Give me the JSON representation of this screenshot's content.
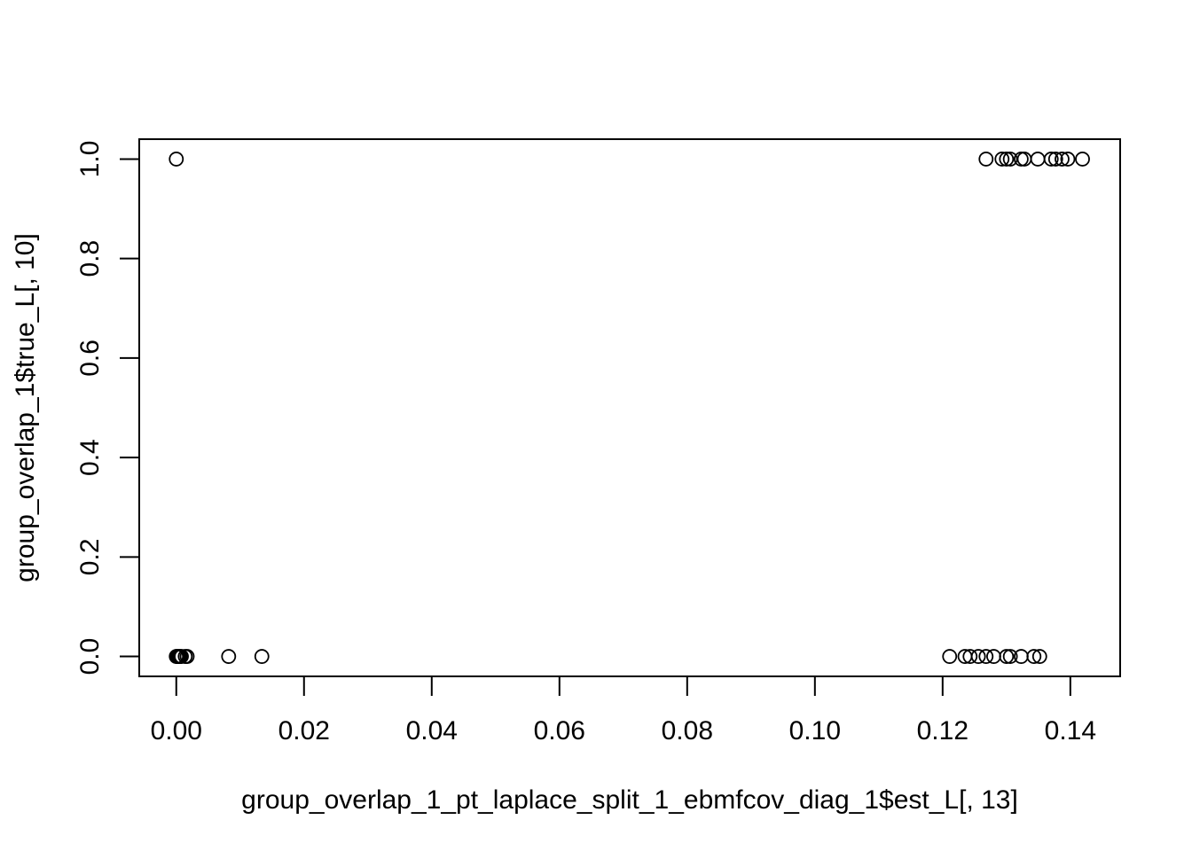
{
  "chart_data": {
    "type": "scatter",
    "title": "",
    "xlabel": "group_overlap_1_pt_laplace_split_1_ebmfcov_diag_1$est_L[, 13]",
    "ylabel": "group_overlap_1$true_L[, 10]",
    "xlim": [
      -0.0058,
      0.1478
    ],
    "ylim": [
      -0.04,
      1.04
    ],
    "x_ticks": [
      0.0,
      0.02,
      0.04,
      0.06,
      0.08,
      0.1,
      0.12,
      0.14
    ],
    "x_tick_labels": [
      "0.00",
      "0.02",
      "0.04",
      "0.06",
      "0.08",
      "0.10",
      "0.12",
      "0.14"
    ],
    "y_ticks": [
      0.0,
      0.2,
      0.4,
      0.6,
      0.8,
      1.0
    ],
    "y_tick_labels": [
      "0.0",
      "0.2",
      "0.4",
      "0.6",
      "0.8",
      "1.0"
    ],
    "grid": false,
    "marker": "open-circle",
    "colors": {
      "points": "#000000",
      "frame": "#000000",
      "background": "#ffffff"
    },
    "points": [
      {
        "x": 0.0,
        "y": 1
      },
      {
        "x": 0.1268,
        "y": 1
      },
      {
        "x": 0.1293,
        "y": 1
      },
      {
        "x": 0.13,
        "y": 1
      },
      {
        "x": 0.1306,
        "y": 1
      },
      {
        "x": 0.1323,
        "y": 1
      },
      {
        "x": 0.1328,
        "y": 1
      },
      {
        "x": 0.1349,
        "y": 1
      },
      {
        "x": 0.137,
        "y": 1
      },
      {
        "x": 0.1377,
        "y": 1
      },
      {
        "x": 0.1387,
        "y": 1
      },
      {
        "x": 0.1396,
        "y": 1
      },
      {
        "x": 0.1419,
        "y": 1
      },
      {
        "x": 0.0,
        "y": 0
      },
      {
        "x": 0.0001,
        "y": 0
      },
      {
        "x": 0.0002,
        "y": 0
      },
      {
        "x": 0.0003,
        "y": 0
      },
      {
        "x": 0.0004,
        "y": 0
      },
      {
        "x": 0.0006,
        "y": 0
      },
      {
        "x": 0.0008,
        "y": 0
      },
      {
        "x": 0.0014,
        "y": 0
      },
      {
        "x": 0.0017,
        "y": 0
      },
      {
        "x": 0.0082,
        "y": 0
      },
      {
        "x": 0.0134,
        "y": 0
      },
      {
        "x": 0.1211,
        "y": 0
      },
      {
        "x": 0.1235,
        "y": 0
      },
      {
        "x": 0.1243,
        "y": 0
      },
      {
        "x": 0.1256,
        "y": 0
      },
      {
        "x": 0.1268,
        "y": 0
      },
      {
        "x": 0.128,
        "y": 0
      },
      {
        "x": 0.13,
        "y": 0
      },
      {
        "x": 0.1306,
        "y": 0
      },
      {
        "x": 0.1323,
        "y": 0
      },
      {
        "x": 0.1343,
        "y": 0
      },
      {
        "x": 0.1352,
        "y": 0
      }
    ]
  }
}
